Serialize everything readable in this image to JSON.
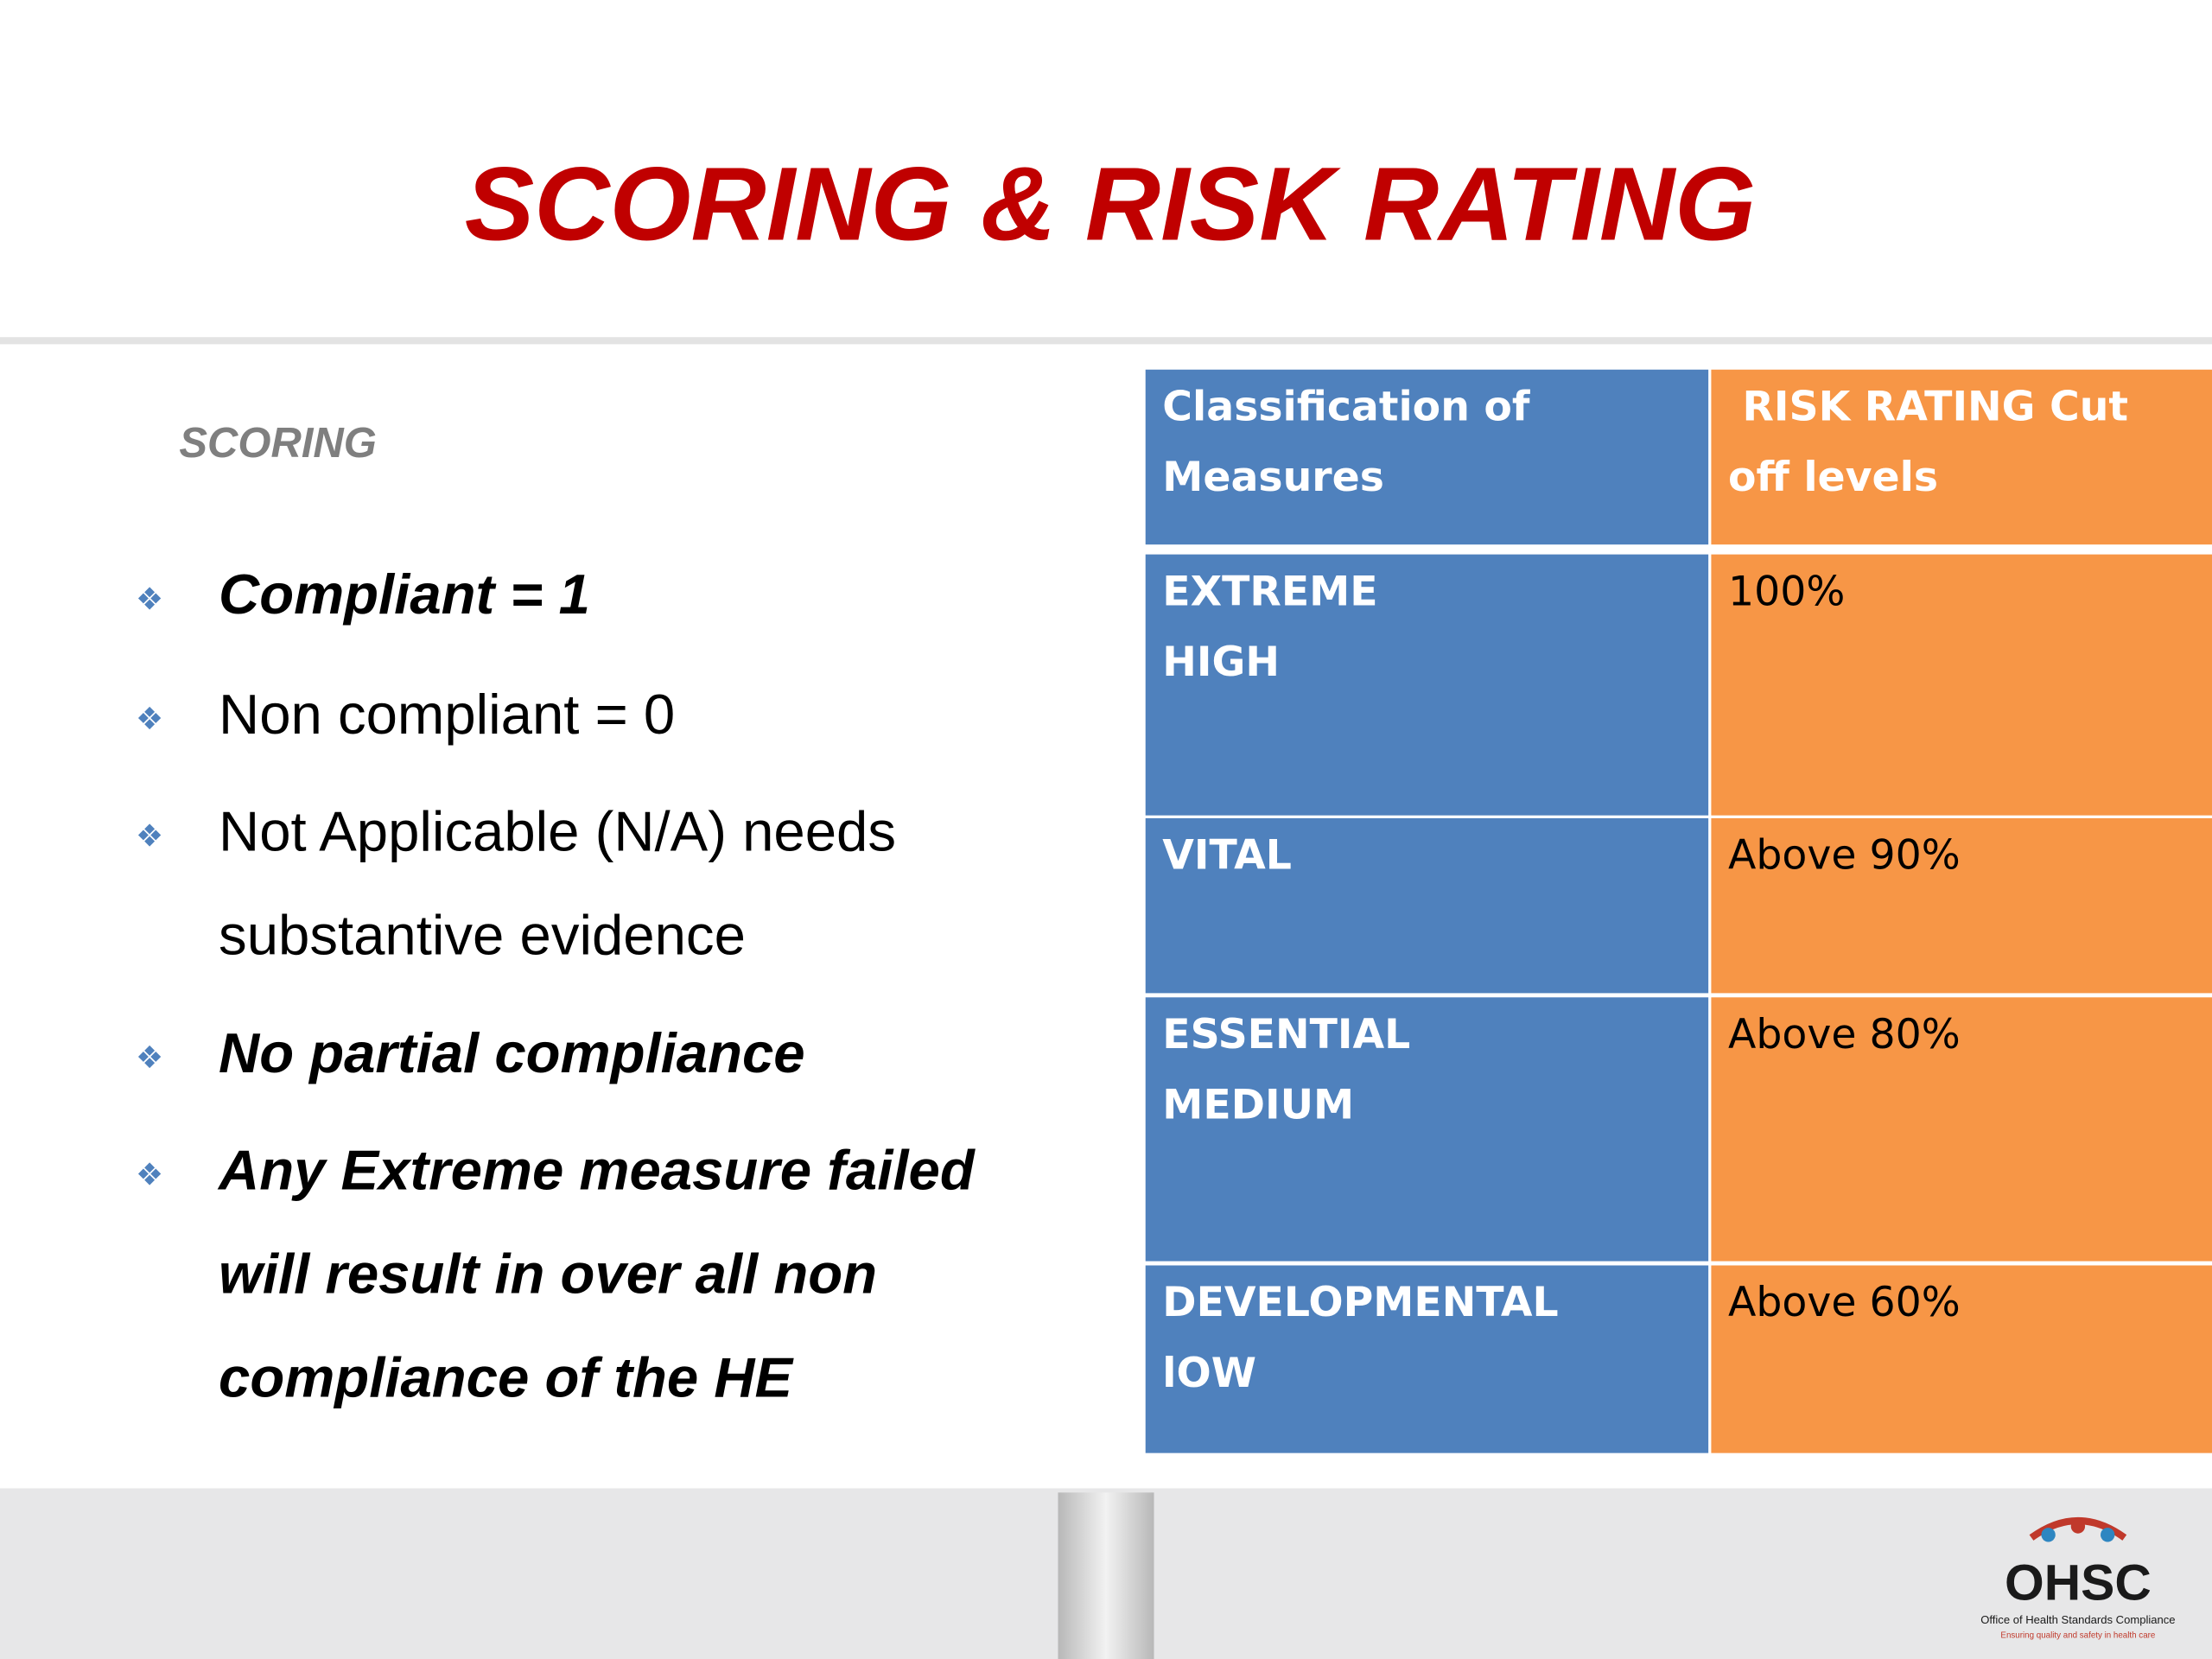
{
  "header": {
    "title": "SCORING & RISK RATING"
  },
  "scoring": {
    "heading": "SCORING",
    "bullets": [
      [
        "Compliant = 1"
      ],
      [
        "Non compliant = 0"
      ],
      [
        "Not Applicable (N/A) needs",
        "substantive evidence"
      ],
      [
        "No partial compliance"
      ],
      [
        "Any Extreme measure failed",
        "will result in over all non",
        "compliance of the HE"
      ]
    ]
  },
  "table": {
    "header": [
      [
        "Classification of",
        "Measures"
      ],
      [
        " RISK RATING Cut",
        "off levels"
      ]
    ],
    "rows": [
      [
        [
          "EXTREME",
          "HIGH"
        ],
        [
          "100%"
        ]
      ],
      [
        [
          "VITAL"
        ],
        [
          "Above 90%"
        ]
      ],
      [
        [
          "ESSENTIAL",
          "MEDIUM"
        ],
        [
          "Above 80%"
        ]
      ],
      [
        [
          "DEVELOPMENTAL",
          "lOW"
        ],
        [
          "Above 60%"
        ]
      ]
    ]
  },
  "logo": {
    "name": "OHSC",
    "full_name": "Office of Health Standards Compliance",
    "tagline": "Ensuring quality and safety in health care"
  }
}
